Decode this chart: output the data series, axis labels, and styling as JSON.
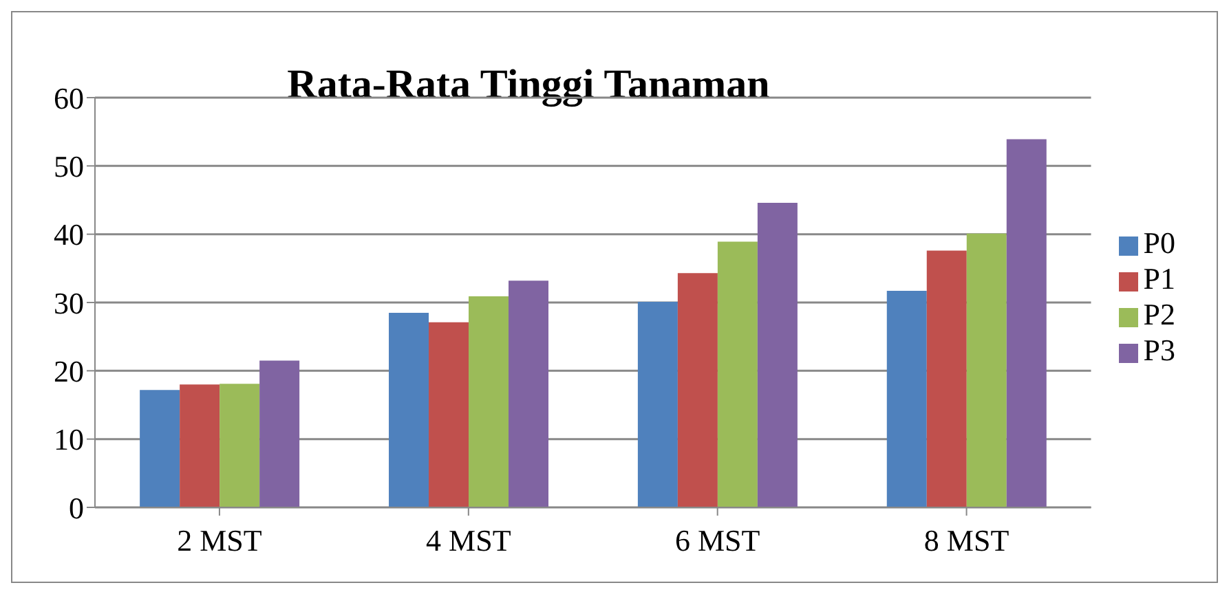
{
  "chart_data": {
    "type": "bar",
    "title": "Rata-Rata Tinggi Tanaman",
    "categories": [
      "2 MST",
      "4 MST",
      "6 MST",
      "8 MST"
    ],
    "series": [
      {
        "name": "P0",
        "color": "#4f81bd",
        "values": [
          17.2,
          28.5,
          30.1,
          31.7
        ]
      },
      {
        "name": "P1",
        "color": "#c0504d",
        "values": [
          18.0,
          27.1,
          34.3,
          37.6
        ]
      },
      {
        "name": "P2",
        "color": "#9bbb59",
        "values": [
          18.1,
          30.9,
          38.9,
          40.1
        ]
      },
      {
        "name": "P3",
        "color": "#8064a2",
        "values": [
          21.5,
          33.2,
          44.6,
          53.9
        ]
      }
    ],
    "ylim": [
      0,
      60
    ],
    "yticks": [
      0,
      10,
      20,
      30,
      40,
      50,
      60
    ],
    "grid": "y",
    "legend": "right"
  }
}
